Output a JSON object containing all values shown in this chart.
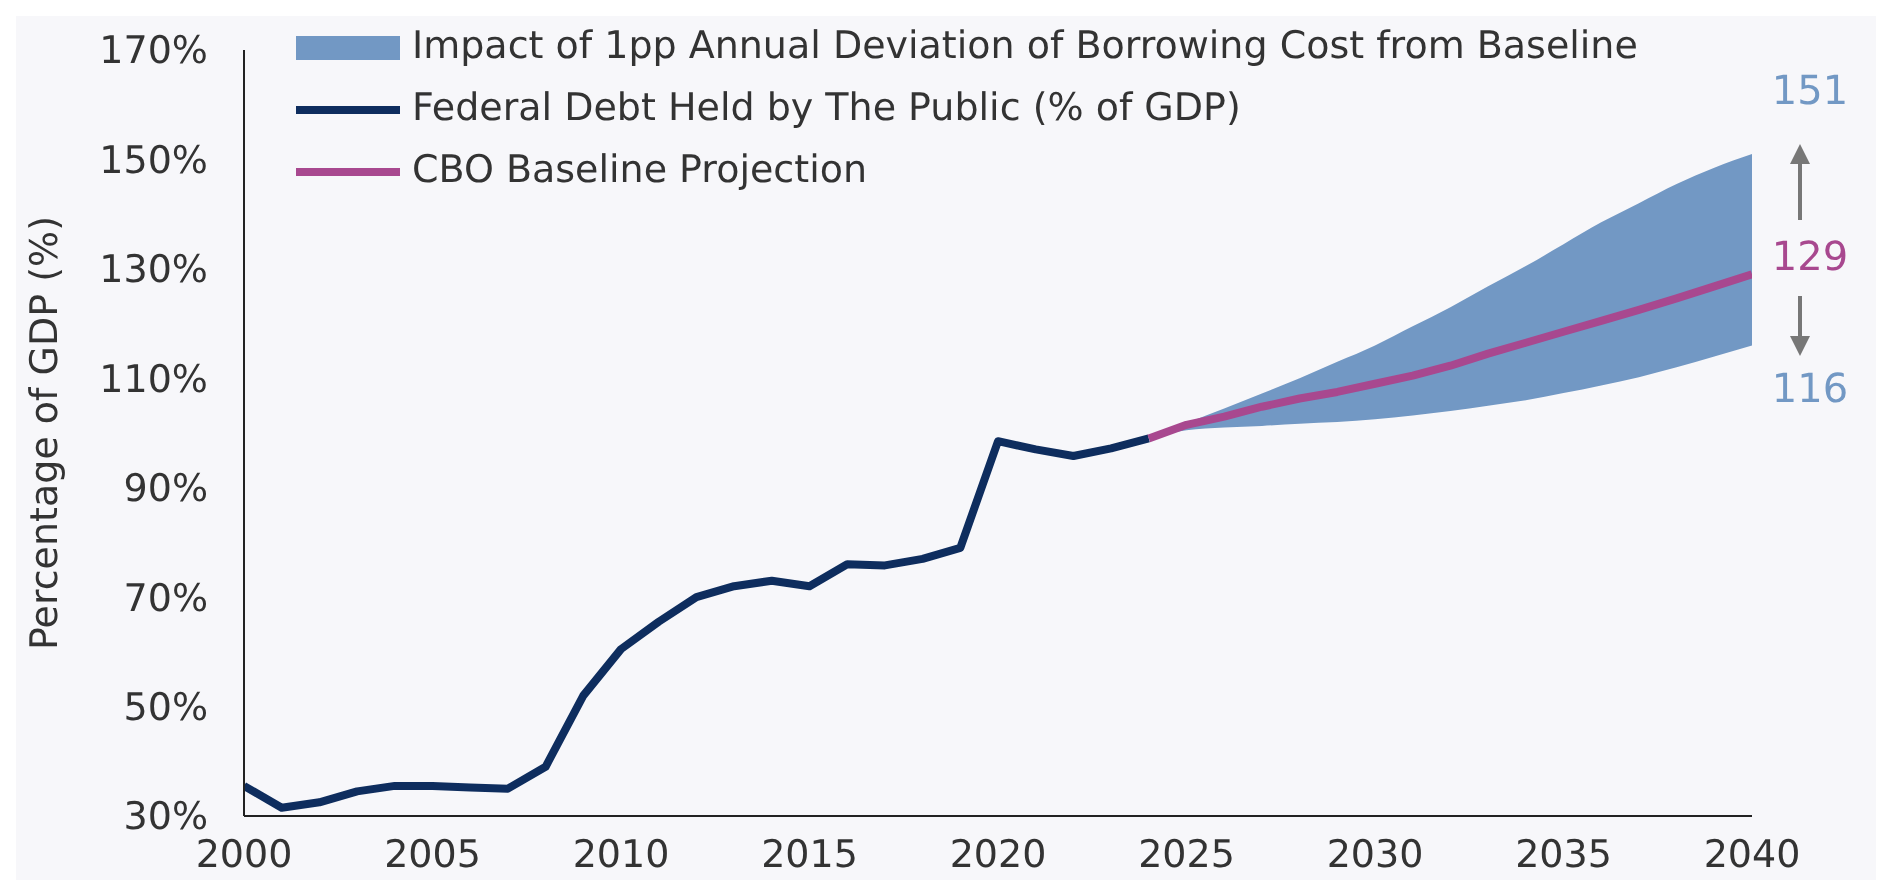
{
  "chart_data": {
    "type": "line",
    "ylabel": "Percentage of GDP (%)",
    "xlim": [
      2000,
      2040
    ],
    "xticks": [
      2000,
      2005,
      2010,
      2015,
      2020,
      2025,
      2030,
      2035,
      2040
    ],
    "ylim": [
      30,
      170
    ],
    "yticks": [
      {
        "value": 30,
        "label": "30%"
      },
      {
        "value": 50,
        "label": "50%"
      },
      {
        "value": 70,
        "label": "70%"
      },
      {
        "value": 90,
        "label": "90%"
      },
      {
        "value": 110,
        "label": "110%"
      },
      {
        "value": 130,
        "label": "130%"
      },
      {
        "value": 150,
        "label": "150%"
      },
      {
        "value": 170,
        "label": "170%"
      }
    ],
    "grid": false,
    "legend": "top left",
    "series": [
      {
        "type": "area",
        "name": "Impact of 1pp Annual Deviation of Borrowing Cost from Baseline",
        "color": "#7298c4"
      },
      {
        "name": "Federal Debt Held by The Public (% of GDP)",
        "color": "#0e2d5e",
        "x": [
          2000,
          2001,
          2002,
          2003,
          2004,
          2005,
          2006,
          2007,
          2008,
          2009,
          2010,
          2011,
          2012,
          2013,
          2014,
          2015,
          2016,
          2017,
          2018,
          2019,
          2020,
          2021,
          2022,
          2023,
          2024
        ],
        "values": [
          35.5,
          31.5,
          32.5,
          34.5,
          35.5,
          35.5,
          35.2,
          35,
          39,
          52,
          60.5,
          65.5,
          70,
          72,
          73,
          72,
          76,
          75.8,
          77,
          79,
          98.5,
          97,
          95.8,
          97.2,
          99
        ]
      },
      {
        "name": "CBO Baseline Projection",
        "color": "#a8488f",
        "x": [
          2024,
          2025,
          2026,
          2027,
          2028,
          2029,
          2030,
          2031,
          2032,
          2033,
          2034,
          2035,
          2036,
          2037,
          2038,
          2039,
          2040
        ],
        "values": [
          99,
          101.5,
          103,
          104.8,
          106.3,
          107.5,
          109,
          110.5,
          112.3,
          114.5,
          116.5,
          118.5,
          120.5,
          122.5,
          124.6,
          126.8,
          129
        ],
        "lower": [
          99,
          100.5,
          101,
          101.3,
          101.7,
          102,
          102.5,
          103.2,
          104,
          105,
          106,
          107.3,
          108.7,
          110.2,
          112,
          114,
          116
        ],
        "upper": [
          99,
          101.8,
          104.5,
          107.2,
          110,
          113,
          116,
          119.5,
          123,
          126.8,
          130.5,
          134.5,
          138.5,
          142,
          145.5,
          148.5,
          151
        ]
      }
    ],
    "annotations": [
      "151",
      "129",
      "116"
    ]
  }
}
